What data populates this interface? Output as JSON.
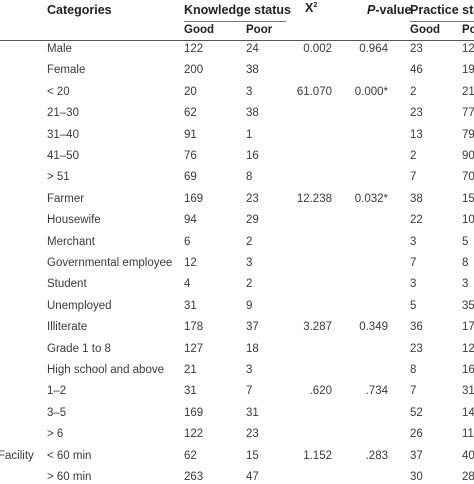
{
  "headers": {
    "categories": "Categories",
    "knowledge_status": "Knowledge status",
    "chi_square": "X²",
    "p_value": "P-value",
    "practice_status": "Practice stat"
  },
  "subheaders": {
    "k_good": "Good",
    "k_poor": "Poor",
    "p_good": "Good",
    "p_poor": "Po"
  },
  "rows": [
    {
      "group": "",
      "category": "Male",
      "k_good": "122",
      "k_poor": "24",
      "x2": "0.002",
      "p": "0.964",
      "p_good": "23",
      "p_poor": "12"
    },
    {
      "group": "",
      "category": "Female",
      "k_good": "200",
      "k_poor": "38",
      "x2": "",
      "p": "",
      "p_good": "46",
      "p_poor": "19"
    },
    {
      "group": "",
      "category": "< 20",
      "k_good": "20",
      "k_poor": "3",
      "x2": "61.070",
      "p": "0.000*",
      "p_good": "2",
      "p_poor": "21"
    },
    {
      "group": "",
      "category": "21–30",
      "k_good": "62",
      "k_poor": "38",
      "x2": "",
      "p": "",
      "p_good": "23",
      "p_poor": "77"
    },
    {
      "group": "",
      "category": "31–40",
      "k_good": "91",
      "k_poor": "1",
      "x2": "",
      "p": "",
      "p_good": "13",
      "p_poor": "79"
    },
    {
      "group": "",
      "category": "41–50",
      "k_good": "76",
      "k_poor": "16",
      "x2": "",
      "p": "",
      "p_good": "2",
      "p_poor": "90"
    },
    {
      "group": "",
      "category": "> 51",
      "k_good": "69",
      "k_poor": "8",
      "x2": "",
      "p": "",
      "p_good": "7",
      "p_poor": "70"
    },
    {
      "group": "",
      "category": "Farmer",
      "k_good": "169",
      "k_poor": "23",
      "x2": "12.238",
      "p": "0.032*",
      "p_good": "38",
      "p_poor": "15"
    },
    {
      "group": "",
      "category": "Housewife",
      "k_good": "94",
      "k_poor": "29",
      "x2": "",
      "p": "",
      "p_good": "22",
      "p_poor": "10"
    },
    {
      "group": "",
      "category": "Merchant",
      "k_good": "6",
      "k_poor": "2",
      "x2": "",
      "p": "",
      "p_good": "3",
      "p_poor": "5"
    },
    {
      "group": "",
      "category": "Governmental employee",
      "k_good": "12",
      "k_poor": "3",
      "x2": "",
      "p": "",
      "p_good": "7",
      "p_poor": "8"
    },
    {
      "group": "",
      "category": "Student",
      "k_good": "4",
      "k_poor": "2",
      "x2": "",
      "p": "",
      "p_good": "3",
      "p_poor": "3"
    },
    {
      "group": "",
      "category": "Unemployed",
      "k_good": "31",
      "k_poor": "9",
      "x2": "",
      "p": "",
      "p_good": "5",
      "p_poor": "35"
    },
    {
      "group": "",
      "category": "Illiterate",
      "k_good": "178",
      "k_poor": "37",
      "x2": "3.287",
      "p": "0.349",
      "p_good": "36",
      "p_poor": "17"
    },
    {
      "group": "",
      "category": "Grade 1 to 8",
      "k_good": "127",
      "k_poor": "18",
      "x2": "",
      "p": "",
      "p_good": "23",
      "p_poor": "12"
    },
    {
      "group": "",
      "category": "High school and above",
      "k_good": "21",
      "k_poor": "3",
      "x2": "",
      "p": "",
      "p_good": "8",
      "p_poor": "16"
    },
    {
      "group": "",
      "category": "1–2",
      "k_good": "31",
      "k_poor": "7",
      "x2": ".620",
      "p": ".734",
      "p_good": "7",
      "p_poor": "31"
    },
    {
      "group": "",
      "category": "3–5",
      "k_good": "169",
      "k_poor": "31",
      "x2": "",
      "p": "",
      "p_good": "52",
      "p_poor": "14"
    },
    {
      "group": "",
      "category": "> 6",
      "k_good": "122",
      "k_poor": "23",
      "x2": "",
      "p": "",
      "p_good": "26",
      "p_poor": "11"
    },
    {
      "group": "Facility",
      "category": "< 60 min",
      "k_good": "62",
      "k_poor": "15",
      "x2": "1.152",
      "p": ".283",
      "p_good": "37",
      "p_poor": "40"
    },
    {
      "group": "",
      "category": "> 60 min",
      "k_good": "263",
      "k_poor": "47",
      "x2": "",
      "p": "",
      "p_good": "30",
      "p_poor": "28"
    }
  ]
}
